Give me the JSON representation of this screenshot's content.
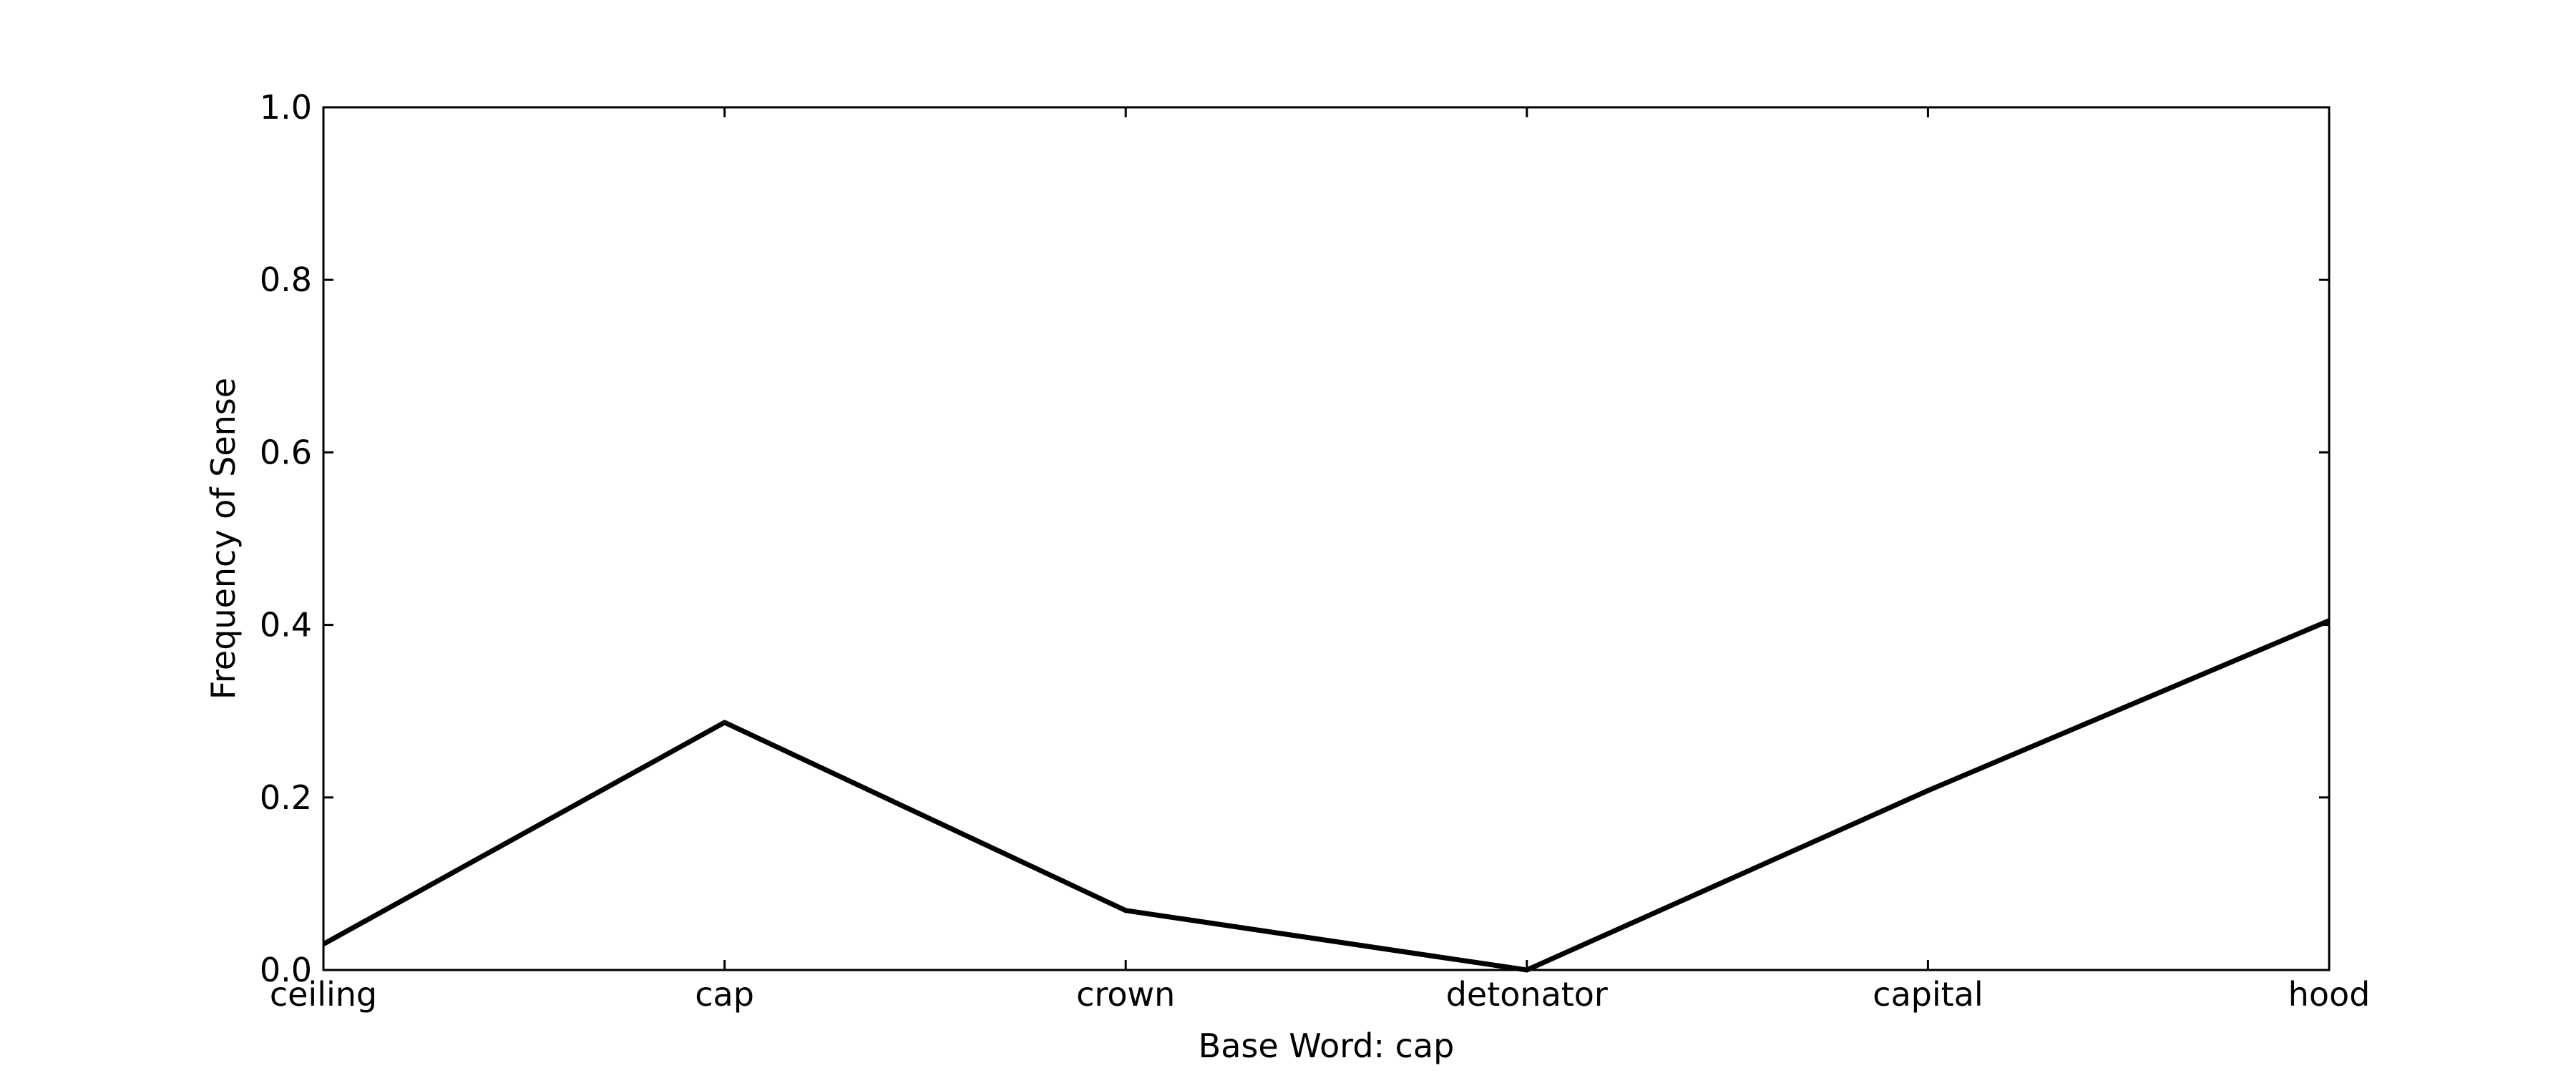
{
  "chart_data": {
    "type": "line",
    "categories": [
      "ceiling",
      "cap",
      "crown",
      "detonator",
      "capital",
      "hood"
    ],
    "series": [
      {
        "values": [
          0.03,
          0.287,
          0.069,
          0.0,
          0.208,
          0.405
        ],
        "color": "#000000"
      }
    ],
    "xlabel": "Base Word: cap",
    "ylabel": "Frequency of Sense",
    "ylim": [
      0.0,
      1.0
    ],
    "yticks": [
      "0.0",
      "0.2",
      "0.4",
      "0.6",
      "0.8",
      "1.0"
    ],
    "grid": false,
    "legend": "none"
  }
}
